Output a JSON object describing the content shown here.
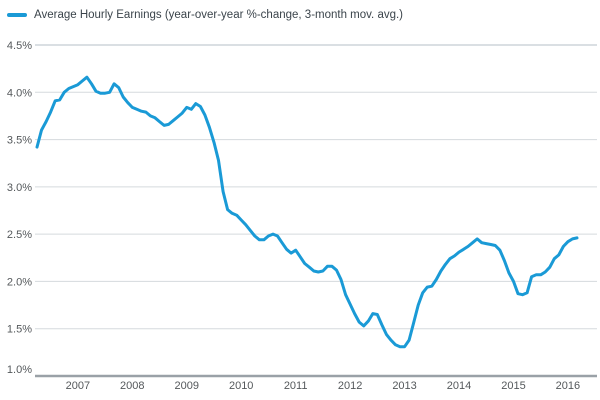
{
  "legend": {
    "label": "Average Hourly Earnings (year-over-year %-change, 3-month mov. avg.)"
  },
  "chart_data": {
    "type": "line",
    "title": "Average Hourly Earnings (year-over-year %-change, 3-month mov. avg.)",
    "xlabel": "",
    "ylabel": "",
    "ylim": [
      1.0,
      4.5
    ],
    "y_tick_step": 0.5,
    "y_tick_labels": [
      "4.5%",
      "4.0%",
      "3.5%",
      "3.0%",
      "2.5%",
      "2.0%",
      "1.5%",
      "1.0%"
    ],
    "x_tick_labels": [
      "2007",
      "2008",
      "2009",
      "2010",
      "2011",
      "2012",
      "2013",
      "2014",
      "2015",
      "2016"
    ],
    "grid": "horizontal",
    "legend_position": "top-left",
    "series": [
      {
        "name": "Average Hourly Earnings (year-over-year %-change, 3-month mov. avg.)",
        "unit": "%",
        "frequency": "monthly",
        "start_month": "2006-04",
        "end_month": "2016-03",
        "values": [
          3.42,
          3.6,
          3.69,
          3.79,
          3.91,
          3.92,
          4.0,
          4.04,
          4.06,
          4.08,
          4.12,
          4.16,
          4.09,
          4.01,
          3.99,
          3.99,
          4.0,
          4.09,
          4.05,
          3.95,
          3.89,
          3.84,
          3.82,
          3.8,
          3.79,
          3.75,
          3.73,
          3.69,
          3.65,
          3.66,
          3.7,
          3.74,
          3.78,
          3.84,
          3.82,
          3.88,
          3.85,
          3.76,
          3.63,
          3.47,
          3.28,
          2.95,
          2.76,
          2.72,
          2.7,
          2.65,
          2.6,
          2.54,
          2.48,
          2.44,
          2.44,
          2.48,
          2.5,
          2.48,
          2.41,
          2.34,
          2.3,
          2.33,
          2.26,
          2.19,
          2.15,
          2.11,
          2.1,
          2.11,
          2.16,
          2.16,
          2.12,
          2.02,
          1.86,
          1.76,
          1.66,
          1.57,
          1.53,
          1.58,
          1.66,
          1.65,
          1.54,
          1.44,
          1.38,
          1.33,
          1.31,
          1.31,
          1.38,
          1.56,
          1.75,
          1.88,
          1.94,
          1.95,
          2.02,
          2.11,
          2.18,
          2.24,
          2.27,
          2.31,
          2.34,
          2.37,
          2.41,
          2.45,
          2.41,
          2.4,
          2.39,
          2.38,
          2.33,
          2.22,
          2.09,
          2.0,
          1.87,
          1.86,
          1.88,
          2.05,
          2.07,
          2.07,
          2.1,
          2.15,
          2.24,
          2.28,
          2.37,
          2.42,
          2.45,
          2.46
        ]
      }
    ],
    "colors": {
      "line": "#1a9ad6",
      "grid": "#d5dadd",
      "grid_top": "#b4bfc7",
      "axis": "#9aa1a7",
      "tick_text": "#54585b",
      "legend_text": "#3b444b",
      "background": "#ffffff"
    }
  }
}
